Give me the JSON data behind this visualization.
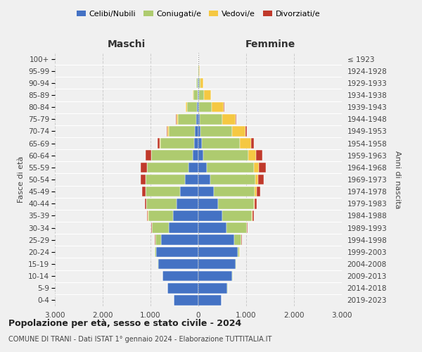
{
  "age_groups": [
    "0-4",
    "5-9",
    "10-14",
    "15-19",
    "20-24",
    "25-29",
    "30-34",
    "35-39",
    "40-44",
    "45-49",
    "50-54",
    "55-59",
    "60-64",
    "65-69",
    "70-74",
    "75-79",
    "80-84",
    "85-89",
    "90-94",
    "95-99",
    "100+"
  ],
  "birth_years": [
    "2019-2023",
    "2014-2018",
    "2009-2013",
    "2004-2008",
    "1999-2003",
    "1994-1998",
    "1989-1993",
    "1984-1988",
    "1979-1983",
    "1974-1978",
    "1969-1973",
    "1964-1968",
    "1959-1963",
    "1954-1958",
    "1949-1953",
    "1944-1948",
    "1939-1943",
    "1934-1938",
    "1929-1933",
    "1924-1928",
    "≤ 1923"
  ],
  "maschi": {
    "celibi": [
      520,
      640,
      750,
      840,
      880,
      780,
      620,
      530,
      450,
      380,
      280,
      200,
      120,
      90,
      70,
      50,
      30,
      20,
      10,
      4,
      2
    ],
    "coniugati": [
      1,
      2,
      5,
      10,
      30,
      120,
      350,
      520,
      640,
      720,
      820,
      870,
      860,
      700,
      550,
      380,
      200,
      80,
      30,
      5,
      1
    ],
    "vedovi": [
      0,
      0,
      0,
      1,
      2,
      2,
      2,
      5,
      5,
      5,
      5,
      10,
      10,
      20,
      20,
      20,
      30,
      20,
      5,
      1,
      0
    ],
    "divorziati": [
      0,
      0,
      0,
      1,
      2,
      5,
      10,
      20,
      30,
      70,
      100,
      130,
      120,
      40,
      20,
      15,
      10,
      5,
      2,
      0,
      0
    ]
  },
  "femmine": {
    "nubili": [
      490,
      610,
      710,
      780,
      820,
      750,
      590,
      500,
      410,
      330,
      250,
      180,
      100,
      70,
      50,
      30,
      20,
      12,
      8,
      5,
      2
    ],
    "coniugate": [
      1,
      2,
      6,
      12,
      40,
      150,
      420,
      620,
      750,
      850,
      940,
      980,
      950,
      800,
      650,
      470,
      260,
      100,
      40,
      8,
      3
    ],
    "vedove": [
      0,
      0,
      0,
      1,
      2,
      3,
      5,
      10,
      20,
      40,
      60,
      100,
      150,
      240,
      280,
      280,
      250,
      150,
      50,
      10,
      2
    ],
    "divorziate": [
      0,
      0,
      0,
      1,
      3,
      5,
      12,
      25,
      40,
      80,
      120,
      150,
      140,
      50,
      30,
      20,
      15,
      8,
      3,
      1,
      0
    ]
  },
  "colors": {
    "celibi": "#4472C4",
    "coniugati": "#AECB6F",
    "vedovi": "#F5C842",
    "divorziati": "#C0392B"
  },
  "xlim": 3000,
  "title": "Popolazione per età, sesso e stato civile - 2024",
  "subtitle": "COMUNE DI TRANI - Dati ISTAT 1° gennaio 2024 - Elaborazione TUTTITALIA.IT",
  "ylabel": "Fasce di età",
  "ylabel2": "Anni di nascita",
  "maschi_label": "Maschi",
  "femmine_label": "Femmine",
  "legend_labels": [
    "Celibi/Nubili",
    "Coniugati/e",
    "Vedovi/e",
    "Divorziati/e"
  ],
  "background_color": "#f0f0f0"
}
